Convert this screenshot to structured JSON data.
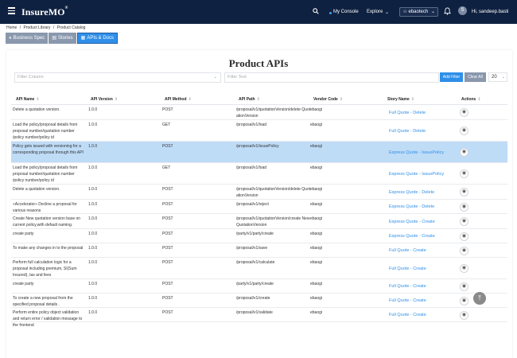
{
  "header": {
    "logo": "InsureMO",
    "logo_mark": "®",
    "my_console": "My Console",
    "explore": "Explore",
    "tenant": "ebaotech",
    "avatar_initial": "S",
    "greeting": "Hi, sandeep.basti"
  },
  "breadcrumb": [
    "Home",
    "/",
    "Product Library",
    "/",
    "Product Catalog"
  ],
  "tabs": [
    {
      "label": "Business Spec",
      "active": false
    },
    {
      "label": "Stories",
      "active": false
    },
    {
      "label": "APIs & Docs",
      "active": true
    }
  ],
  "page": {
    "title": "Product APIs"
  },
  "filters": {
    "column_placeholder": "Filter Column",
    "text_placeholder": "Filter Text",
    "add_filter": "Add Filter",
    "clear_all": "Clear All",
    "page_size": "20"
  },
  "table": {
    "columns": [
      "API Name",
      "API Version",
      "API Method",
      "API Path",
      "Vendor Code",
      "Story Name",
      "Actions"
    ],
    "rows": [
      {
        "name": "Delete a quotation version.",
        "version": "1.0.0",
        "method": "POST",
        "path": "/proposal/v1/quotationVersion/delete QuotationVersion",
        "vendor": "ebaogi",
        "story": "Full Quote - Delete",
        "selected": false
      },
      {
        "name": "Load the policy/proposal details from proposal number/quotation number /policy number/policy id",
        "version": "1.0.0",
        "method": "GET",
        "path": "/proposal/v1/load",
        "vendor": "ebaogi",
        "story": "Full Quote - Delete",
        "selected": false
      },
      {
        "name": "Policy gets issued with versioning for a corresponding proposal through this API",
        "version": "1.0.0",
        "method": "POST",
        "path": "/proposal/v1/issuePolicy",
        "vendor": "ebaogi",
        "story": "Express Quote - IssuePolicy",
        "selected": true
      },
      {
        "name": "Load the policy/proposal details from proposal number/quotation number /policy number/policy id",
        "version": "1.0.0",
        "method": "GET",
        "path": "/proposal/v1/load",
        "vendor": "ebaogi",
        "story": "Express Quote - IssuePolicy",
        "selected": false
      },
      {
        "name": "Delete a quotation version.",
        "version": "1.0.0",
        "method": "POST",
        "path": "/proposal/v1/quotationVersion/delete QuotationVersion",
        "vendor": "ebaogi",
        "story": "Express Quote - Delete",
        "selected": false
      },
      {
        "name": "«Accelerator» Decline a proposal for various reasons",
        "version": "1.0.0",
        "method": "POST",
        "path": "/proposal/v1/reject",
        "vendor": "ebaogi",
        "story": "Express Quote - Delete",
        "selected": false
      },
      {
        "name": "Create New quotation version base on current policy,with default naming.",
        "version": "1.0.0",
        "method": "POST",
        "path": "/proposal/v1/quotationVersion/create NewQuotationVersion",
        "vendor": "ebaogi",
        "story": "Express Quote - Create",
        "selected": false
      },
      {
        "name": "create party",
        "version": "1.0.0",
        "method": "POST",
        "path": "/party/v1/party/create",
        "vendor": "ebaogi",
        "story": "Express Quote - Create",
        "selected": false
      },
      {
        "name": "To make any changes in to the proposal",
        "version": "1.0.0",
        "method": "POST",
        "path": "/proposal/v1/save",
        "vendor": "ebaogi",
        "story": "Full Quote - Create",
        "selected": false
      },
      {
        "name": "Perform full calculation logic for a proposal including premium, SI(Sum Insured), tax and fees",
        "version": "1.0.0",
        "method": "POST",
        "path": "/proposal/v1/calculate",
        "vendor": "ebaogi",
        "story": "Full Quote - Create",
        "selected": false
      },
      {
        "name": "create party",
        "version": "1.0.0",
        "method": "POST",
        "path": "/party/v1/party/create",
        "vendor": "ebaogi",
        "story": "Full Quote - Create",
        "selected": false
      },
      {
        "name": "To create a new proposal from the specified proposal details .",
        "version": "1.0.0",
        "method": "POST",
        "path": "/proposal/v1/create",
        "vendor": "ebaogi",
        "story": "Full Quote - Create",
        "selected": false
      },
      {
        "name": "Perform entire policy object validation and return error / validation message to the frontend",
        "version": "1.0.0",
        "method": "POST",
        "path": "/proposal/v1/validate",
        "vendor": "ebaogi",
        "story": "Full Quote - Create",
        "selected": false
      }
    ]
  }
}
